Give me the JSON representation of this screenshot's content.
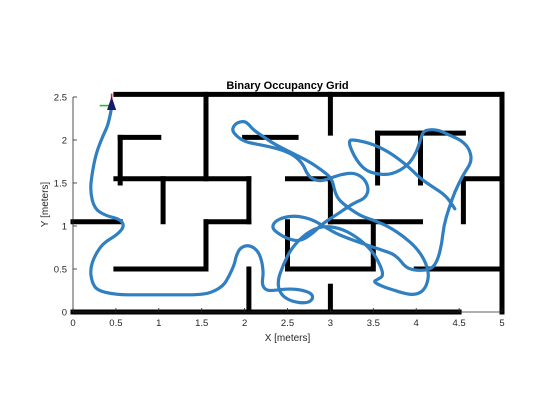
{
  "chart_data": {
    "type": "occupancy-grid-path",
    "title": "Binary Occupancy Grid",
    "xlabel": "X [meters]",
    "ylabel": "Y [meters]",
    "xlim": [
      0,
      5
    ],
    "ylim": [
      0,
      2.5
    ],
    "x_ticks": [
      0,
      0.5,
      1,
      1.5,
      2,
      2.5,
      3,
      3.5,
      4,
      4.5,
      5
    ],
    "y_ticks": [
      0,
      0.5,
      1,
      1.5,
      2,
      2.5
    ],
    "x_tick_labels": [
      "0",
      "0.5",
      "1",
      "1.5",
      "2",
      "2.5",
      "3",
      "3.5",
      "4",
      "4.5",
      "5"
    ],
    "y_tick_labels": [
      "0",
      "0.5",
      "1",
      "1.5",
      "2",
      "2.5"
    ],
    "grid": false,
    "colors": {
      "walls": "#000000",
      "path": "#2f7fc1",
      "robot_body": "#1a1a6e",
      "robot_x_axis": "#e4212c",
      "robot_y_axis": "#22c322",
      "axes": "#262626"
    },
    "walls": [
      [
        [
          0.5,
          2.53
        ],
        [
          5.0,
          2.53
        ]
      ],
      [
        [
          0.0,
          0.0
        ],
        [
          4.5,
          0.0
        ]
      ],
      [
        [
          5.0,
          0.0
        ],
        [
          5.0,
          2.53
        ]
      ],
      [
        [
          1.55,
          1.55
        ],
        [
          1.55,
          2.53
        ]
      ],
      [
        [
          3.0,
          2.08
        ],
        [
          3.0,
          2.53
        ]
      ],
      [
        [
          0.55,
          2.03
        ],
        [
          1.0,
          2.03
        ]
      ],
      [
        [
          0.55,
          1.5
        ],
        [
          0.55,
          2.03
        ]
      ],
      [
        [
          2.0,
          2.03
        ],
        [
          2.6,
          2.03
        ]
      ],
      [
        [
          3.55,
          2.08
        ],
        [
          4.55,
          2.08
        ]
      ],
      [
        [
          3.55,
          1.5
        ],
        [
          3.55,
          2.08
        ]
      ],
      [
        [
          4.05,
          1.5
        ],
        [
          4.05,
          2.08
        ]
      ],
      [
        [
          0.5,
          1.55
        ],
        [
          2.05,
          1.55
        ]
      ],
      [
        [
          2.05,
          1.05
        ],
        [
          2.05,
          1.55
        ]
      ],
      [
        [
          1.05,
          1.05
        ],
        [
          1.05,
          1.55
        ]
      ],
      [
        [
          2.5,
          1.55
        ],
        [
          3.0,
          1.55
        ]
      ],
      [
        [
          3.0,
          1.05
        ],
        [
          3.0,
          1.55
        ]
      ],
      [
        [
          3.0,
          1.05
        ],
        [
          4.05,
          1.05
        ]
      ],
      [
        [
          4.55,
          1.55
        ],
        [
          5.0,
          1.55
        ]
      ],
      [
        [
          4.55,
          1.05
        ],
        [
          4.55,
          1.55
        ]
      ],
      [
        [
          0.0,
          1.05
        ],
        [
          0.55,
          1.05
        ]
      ],
      [
        [
          1.55,
          1.05
        ],
        [
          2.05,
          1.05
        ]
      ],
      [
        [
          1.55,
          0.55
        ],
        [
          1.55,
          1.05
        ]
      ],
      [
        [
          2.5,
          0.55
        ],
        [
          2.5,
          1.05
        ]
      ],
      [
        [
          3.5,
          0.55
        ],
        [
          3.5,
          1.05
        ]
      ],
      [
        [
          0.5,
          0.5
        ],
        [
          1.55,
          0.5
        ]
      ],
      [
        [
          2.5,
          0.5
        ],
        [
          3.0,
          0.5
        ]
      ],
      [
        [
          3.0,
          0.5
        ],
        [
          3.5,
          0.5
        ]
      ],
      [
        [
          4.0,
          0.5
        ],
        [
          5.0,
          0.5
        ]
      ],
      [
        [
          2.05,
          0.0
        ],
        [
          2.05,
          0.5
        ]
      ],
      [
        [
          3.0,
          0.0
        ],
        [
          3.0,
          0.3
        ]
      ]
    ],
    "path": {
      "x": [
        0.45,
        0.42,
        0.35,
        0.27,
        0.22,
        0.2,
        0.25,
        0.38,
        0.55,
        0.6,
        0.52,
        0.35,
        0.25,
        0.2,
        0.22,
        0.28,
        0.5,
        0.8,
        1.05,
        1.25,
        1.45,
        1.6,
        1.75,
        1.82,
        1.88,
        1.9,
        1.95,
        2.05,
        2.15,
        2.2,
        2.22,
        2.2,
        2.25,
        2.35,
        2.5,
        2.65,
        2.78,
        2.8,
        2.72,
        2.55,
        2.42,
        2.38,
        2.45,
        2.55,
        2.72,
        2.9,
        3.1,
        3.3,
        3.48,
        3.58,
        3.62,
        3.55,
        3.5,
        3.6,
        3.75,
        3.85,
        3.95,
        4.05,
        4.12,
        4.15,
        4.1,
        4.0,
        3.85,
        3.7,
        3.55,
        3.4,
        3.3,
        3.2,
        3.1,
        3.05,
        3.02,
        2.9,
        2.75,
        2.55,
        2.35,
        2.2,
        2.1,
        2.05,
        2.0,
        1.9,
        1.85,
        1.9,
        2.0,
        2.15,
        2.3,
        2.45,
        2.58,
        2.68,
        2.72,
        2.78,
        2.88,
        2.98,
        3.12,
        3.28,
        3.4,
        3.45,
        3.4,
        3.3,
        3.2,
        3.1,
        3.02,
        2.9,
        2.8,
        2.65,
        2.5,
        2.38,
        2.32,
        2.35,
        2.45,
        2.6,
        2.78,
        2.92,
        3.05,
        3.22,
        3.42,
        3.6,
        3.72,
        3.8,
        3.85,
        3.92,
        4.05,
        4.18,
        4.25,
        4.3,
        4.32,
        4.38,
        4.45,
        4.55,
        4.65,
        4.62,
        4.52,
        4.4,
        4.3,
        4.22,
        4.15,
        4.08,
        4.05,
        4.0,
        3.9,
        3.72,
        3.55,
        3.4,
        3.28,
        3.2,
        3.3,
        3.5,
        3.7,
        3.9,
        4.05,
        4.2,
        4.35,
        4.45
      ],
      "y": [
        2.38,
        2.2,
        2.05,
        1.85,
        1.6,
        1.4,
        1.2,
        1.12,
        1.08,
        1.0,
        0.9,
        0.8,
        0.65,
        0.5,
        0.35,
        0.25,
        0.2,
        0.2,
        0.2,
        0.2,
        0.2,
        0.22,
        0.3,
        0.42,
        0.55,
        0.65,
        0.75,
        0.78,
        0.72,
        0.6,
        0.45,
        0.32,
        0.25,
        0.25,
        0.27,
        0.26,
        0.22,
        0.15,
        0.1,
        0.12,
        0.2,
        0.35,
        0.55,
        0.75,
        0.92,
        1.0,
        0.98,
        0.88,
        0.72,
        0.55,
        0.42,
        0.38,
        0.35,
        0.3,
        0.25,
        0.22,
        0.2,
        0.22,
        0.3,
        0.45,
        0.6,
        0.75,
        0.88,
        0.98,
        1.05,
        1.1,
        1.15,
        1.22,
        1.3,
        1.4,
        1.55,
        1.65,
        1.75,
        1.85,
        1.95,
        2.05,
        2.12,
        2.18,
        2.22,
        2.2,
        2.12,
        2.05,
        1.98,
        1.95,
        1.92,
        1.88,
        1.82,
        1.72,
        1.62,
        1.55,
        1.52,
        1.55,
        1.6,
        1.62,
        1.55,
        1.42,
        1.32,
        1.28,
        1.22,
        1.15,
        1.1,
        1.02,
        0.92,
        0.82,
        0.85,
        0.92,
        0.98,
        1.05,
        1.1,
        1.12,
        1.08,
        1.0,
        0.92,
        0.85,
        0.78,
        0.72,
        0.68,
        0.62,
        0.55,
        0.5,
        0.48,
        0.5,
        0.6,
        0.8,
        1.0,
        1.2,
        1.4,
        1.6,
        1.75,
        1.9,
        2.0,
        2.05,
        2.1,
        2.12,
        2.12,
        2.1,
        2.0,
        1.85,
        1.7,
        1.6,
        1.6,
        1.65,
        1.8,
        2.0,
        2.0,
        1.95,
        1.85,
        1.7,
        1.55,
        1.45,
        1.35,
        1.2
      ]
    },
    "robot_pose": {
      "x": 0.45,
      "y": 2.4
    }
  }
}
